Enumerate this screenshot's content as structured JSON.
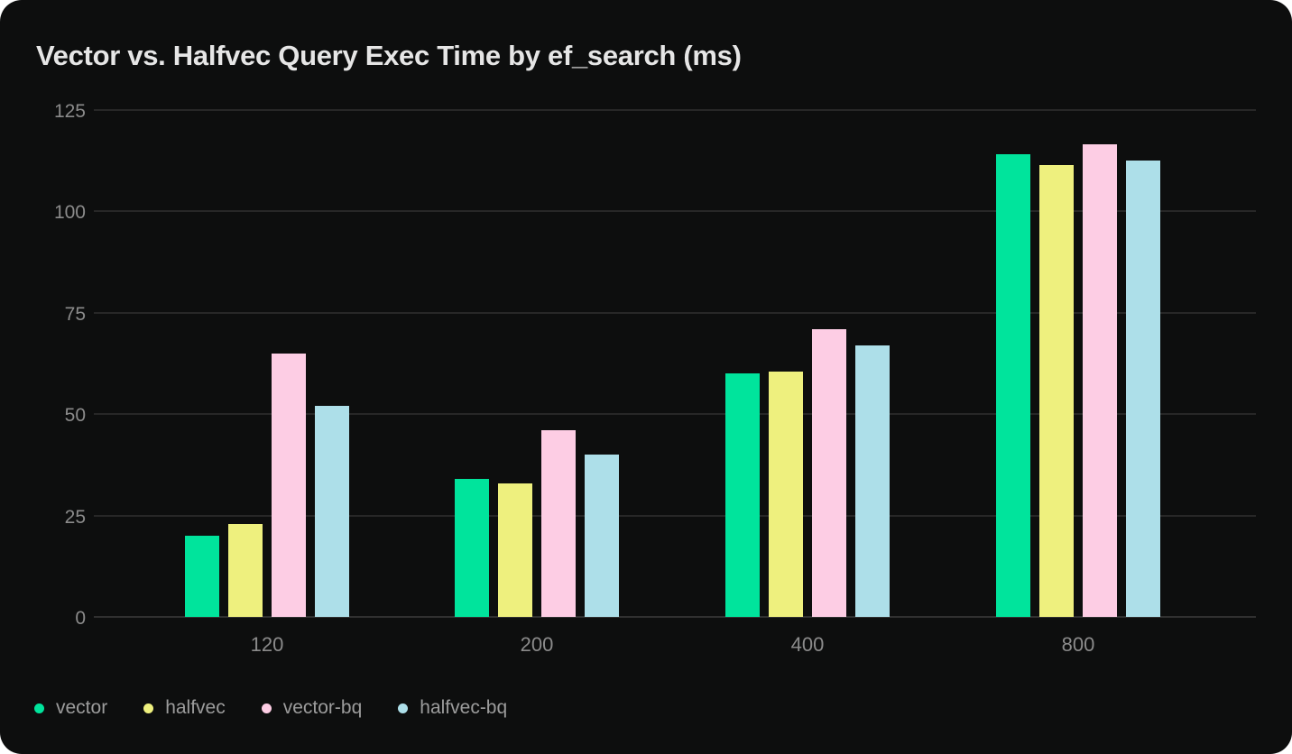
{
  "title": "Vector vs. Halfvec Query Exec Time by ef_search (ms)",
  "colors": {
    "card_background": "#0d0e0e",
    "outer_background": "#ffffff",
    "gridline": "#272727",
    "axis_label": "#8b8b8b",
    "legend_label": "#9c9c9c",
    "title_text": "#e6e6e6"
  },
  "chart_data": {
    "type": "bar",
    "title": "Vector vs. Halfvec Query Exec Time by ef_search (ms)",
    "xlabel": "",
    "ylabel": "",
    "categories": [
      "120",
      "200",
      "400",
      "800"
    ],
    "series": [
      {
        "name": "vector",
        "color": "#00e49c",
        "values": [
          20,
          34,
          60,
          114
        ]
      },
      {
        "name": "halfvec",
        "color": "#eef07e",
        "values": [
          23,
          33,
          60.5,
          111.5
        ]
      },
      {
        "name": "vector-bq",
        "color": "#fdcde4",
        "values": [
          65,
          46,
          71,
          116.5
        ]
      },
      {
        "name": "halfvec-bq",
        "color": "#addfe9",
        "values": [
          52,
          40,
          67,
          112.5
        ]
      }
    ],
    "ylim": [
      0,
      125
    ],
    "yticks": [
      0,
      25,
      50,
      75,
      100,
      125
    ],
    "grid": true,
    "legend_position": "bottom-left"
  }
}
